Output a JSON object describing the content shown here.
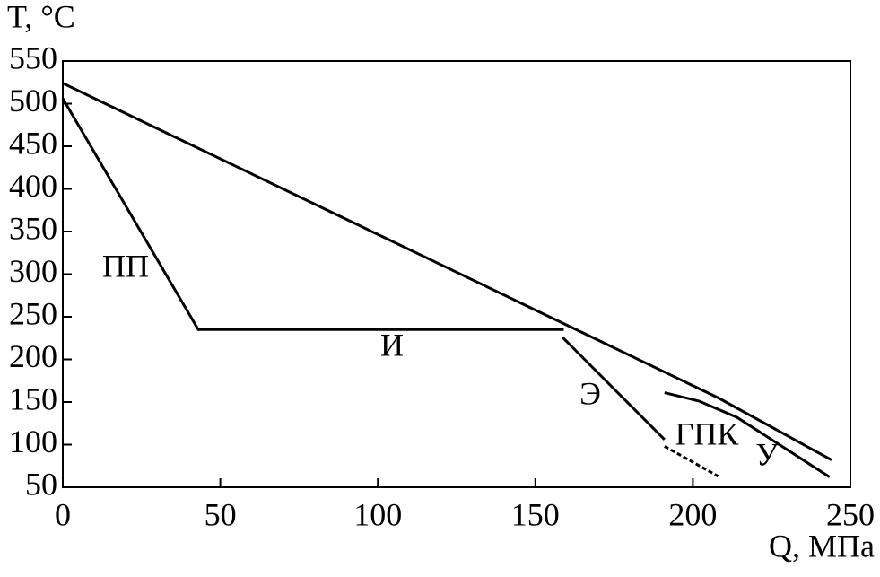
{
  "chart_data": {
    "type": "line",
    "y_label": "T, °C",
    "x_label": "Q, МПа",
    "xlim": [
      0,
      250
    ],
    "xticks": [
      0,
      50,
      100,
      150,
      200,
      250
    ],
    "ylim": [
      50,
      550
    ],
    "yticks": [
      50,
      100,
      150,
      200,
      250,
      300,
      350,
      400,
      450,
      500,
      550
    ],
    "grid": false,
    "series": [
      {
        "color": "#000000",
        "x": [
          0,
          208,
          244
        ],
        "values": [
          524,
          155,
          82
        ]
      },
      {
        "color": "#000000",
        "x": [
          0,
          43,
          159
        ],
        "values": [
          506,
          235,
          235
        ]
      },
      {
        "color": "#000000",
        "x": [
          158.6,
          191
        ],
        "values": [
          226,
          106
        ]
      },
      {
        "color": "#000000",
        "dashed": true,
        "x": [
          191,
          208
        ],
        "values": [
          98,
          63
        ]
      },
      {
        "color": "#000000",
        "x": [
          191,
          202,
          214,
          243.4
        ],
        "values": [
          161,
          151,
          132,
          62
        ]
      }
    ],
    "annotations": [
      "ПП",
      "И",
      "Э",
      "ГПК",
      "У"
    ]
  }
}
